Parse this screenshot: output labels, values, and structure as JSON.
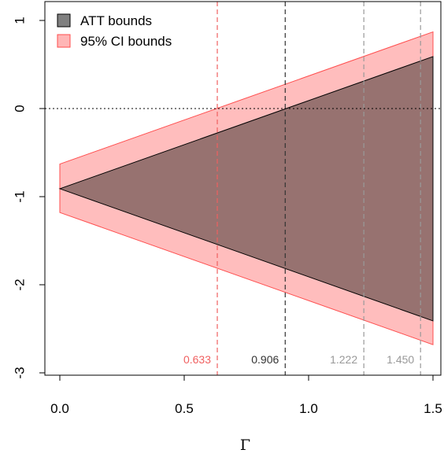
{
  "chart_data": {
    "type": "area",
    "xlabel": "Γ",
    "ylabel": "",
    "title": "",
    "xlim": [
      0,
      1.5
    ],
    "ylim": [
      -3,
      1
    ],
    "x_ticks": [
      0.0,
      0.5,
      1.0,
      1.5
    ],
    "x_tick_labels": [
      "0.0",
      "0.5",
      "1.0",
      "1.5"
    ],
    "y_ticks": [
      -3,
      -2,
      -1,
      0,
      1
    ],
    "y_tick_labels": [
      "-3",
      "-2",
      "-1",
      "0",
      "1"
    ],
    "reference_line_y": 0,
    "legend": {
      "placement": "top-left",
      "entries": [
        {
          "label": "ATT bounds",
          "fill": "#7f7f7f",
          "stroke": "#000000"
        },
        {
          "label": "95% CI bounds",
          "fill": "#ffb6b6",
          "stroke": "#ff4d4d"
        }
      ]
    },
    "series": [
      {
        "name": "ATT bounds",
        "x": [
          0,
          1.5
        ],
        "upper": [
          -0.91,
          0.59
        ],
        "lower": [
          -0.91,
          -2.41
        ],
        "fill": "#977270",
        "stroke": "#000000"
      },
      {
        "name": "95% CI bounds",
        "x": [
          0,
          1.5
        ],
        "upper": [
          -0.63,
          0.87
        ],
        "lower": [
          -1.18,
          -2.68
        ],
        "fill": "#ffbdbd",
        "stroke": "#ff4d4d"
      }
    ],
    "vertical_lines": [
      {
        "x": 0.633,
        "label": "0.633",
        "color": "#f06060"
      },
      {
        "x": 0.906,
        "label": "0.906",
        "color": "#333333"
      },
      {
        "x": 1.222,
        "label": "1.222",
        "color": "#999999"
      },
      {
        "x": 1.45,
        "label": "1.450",
        "color": "#999999"
      }
    ]
  }
}
